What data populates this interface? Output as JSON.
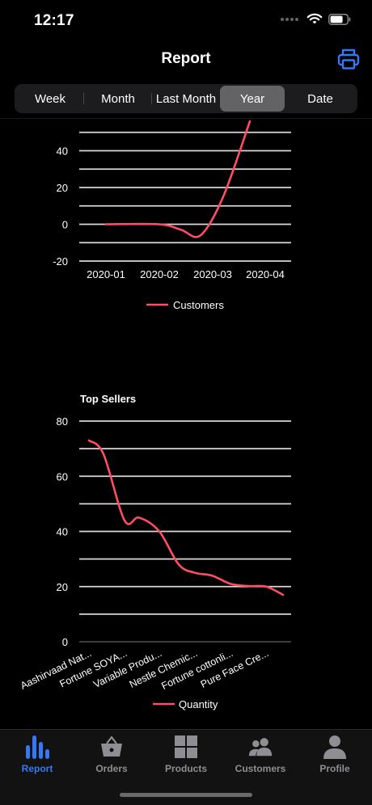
{
  "status": {
    "time": "12:17"
  },
  "header": {
    "title": "Report"
  },
  "segments": [
    {
      "label": "Week",
      "active": false
    },
    {
      "label": "Month",
      "active": false
    },
    {
      "label": "Last Month",
      "active": false
    },
    {
      "label": "Year",
      "active": true
    },
    {
      "label": "Date",
      "active": false
    }
  ],
  "tabs": [
    {
      "label": "Report",
      "icon": "bar-chart-icon",
      "active": true
    },
    {
      "label": "Orders",
      "icon": "shopping-basket-icon",
      "active": false
    },
    {
      "label": "Products",
      "icon": "grid-icon",
      "active": false
    },
    {
      "label": "Customers",
      "icon": "users-icon",
      "active": false
    },
    {
      "label": "Profile",
      "icon": "person-icon",
      "active": false
    }
  ],
  "colors": {
    "line": "#ff4d63",
    "accent": "#3478f6",
    "background": "#000000"
  },
  "chart_data": [
    {
      "type": "line",
      "title": "",
      "x": [
        "2020-01",
        "2020-02",
        "2020-03",
        "2020-04"
      ],
      "series": [
        {
          "name": "Customers",
          "values": [
            0,
            0,
            -6,
            56
          ]
        }
      ],
      "yticks": [
        -20,
        0,
        20,
        40
      ],
      "ylim": [
        -20,
        62
      ],
      "legend": "bottom",
      "grid": true
    },
    {
      "type": "line",
      "title": "Top Sellers",
      "categories": [
        "Aashirvaad Nat...",
        "Fortune SOYA...",
        "Variable Produ...",
        "Nestle Chemic...",
        "Fortune cottonli...",
        "Pure Face Cre..."
      ],
      "series": [
        {
          "name": "Quantity",
          "values": [
            73,
            44,
            40,
            26,
            21,
            20
          ]
        }
      ],
      "end_value": 17,
      "yticks": [
        0,
        20,
        40,
        60,
        80
      ],
      "ylim": [
        0,
        80
      ],
      "legend": "bottom",
      "grid": true
    }
  ]
}
